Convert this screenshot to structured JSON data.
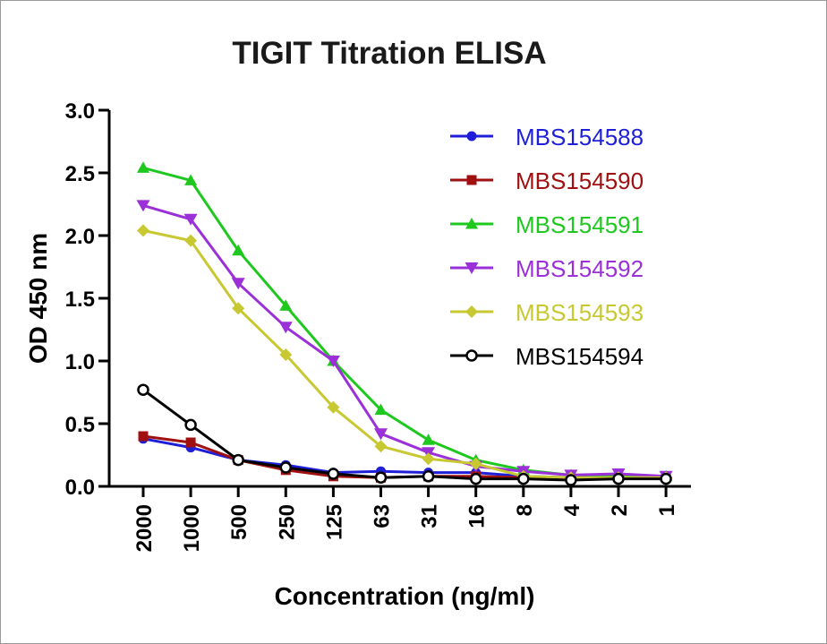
{
  "chart_data": {
    "type": "line",
    "title": "TIGIT Titration ELISA",
    "xlabel": "Concentration (ng/ml)",
    "ylabel": "OD 450 nm",
    "categories": [
      "2000",
      "1000",
      "500",
      "250",
      "125",
      "63",
      "31",
      "16",
      "8",
      "4",
      "2",
      "1"
    ],
    "ylim": [
      0,
      3.0
    ],
    "yticks": [
      "0.0",
      "0.5",
      "1.0",
      "1.5",
      "2.0",
      "2.5",
      "3.0"
    ],
    "legend_position": "top-right",
    "grid": false,
    "series": [
      {
        "name": "MBS154588",
        "color": "#1f1fd8",
        "marker": "circle",
        "values": [
          0.38,
          0.31,
          0.21,
          0.17,
          0.11,
          0.12,
          0.11,
          0.11,
          0.08,
          0.07,
          0.08,
          0.08
        ]
      },
      {
        "name": "MBS154590",
        "color": "#a01010",
        "marker": "square",
        "values": [
          0.4,
          0.35,
          0.21,
          0.13,
          0.08,
          0.07,
          0.08,
          0.08,
          0.07,
          0.06,
          0.07,
          0.07
        ]
      },
      {
        "name": "MBS154591",
        "color": "#1ec81e",
        "marker": "triangle-up",
        "values": [
          2.54,
          2.44,
          1.88,
          1.44,
          1.0,
          0.61,
          0.37,
          0.21,
          0.13,
          0.09,
          0.09,
          0.08
        ]
      },
      {
        "name": "MBS154592",
        "color": "#9b2fd8",
        "marker": "triangle-down",
        "values": [
          2.24,
          2.13,
          1.62,
          1.27,
          1.0,
          0.42,
          0.27,
          0.16,
          0.12,
          0.09,
          0.1,
          0.08
        ]
      },
      {
        "name": "MBS154593",
        "color": "#c8c832",
        "marker": "diamond",
        "values": [
          2.04,
          1.96,
          1.42,
          1.05,
          0.63,
          0.32,
          0.22,
          0.18,
          0.08,
          0.07,
          0.07,
          0.07
        ]
      },
      {
        "name": "MBS154594",
        "color": "#000000",
        "marker": "open-circle",
        "values": [
          0.77,
          0.49,
          0.21,
          0.15,
          0.1,
          0.07,
          0.08,
          0.06,
          0.06,
          0.05,
          0.06,
          0.06
        ]
      }
    ]
  }
}
